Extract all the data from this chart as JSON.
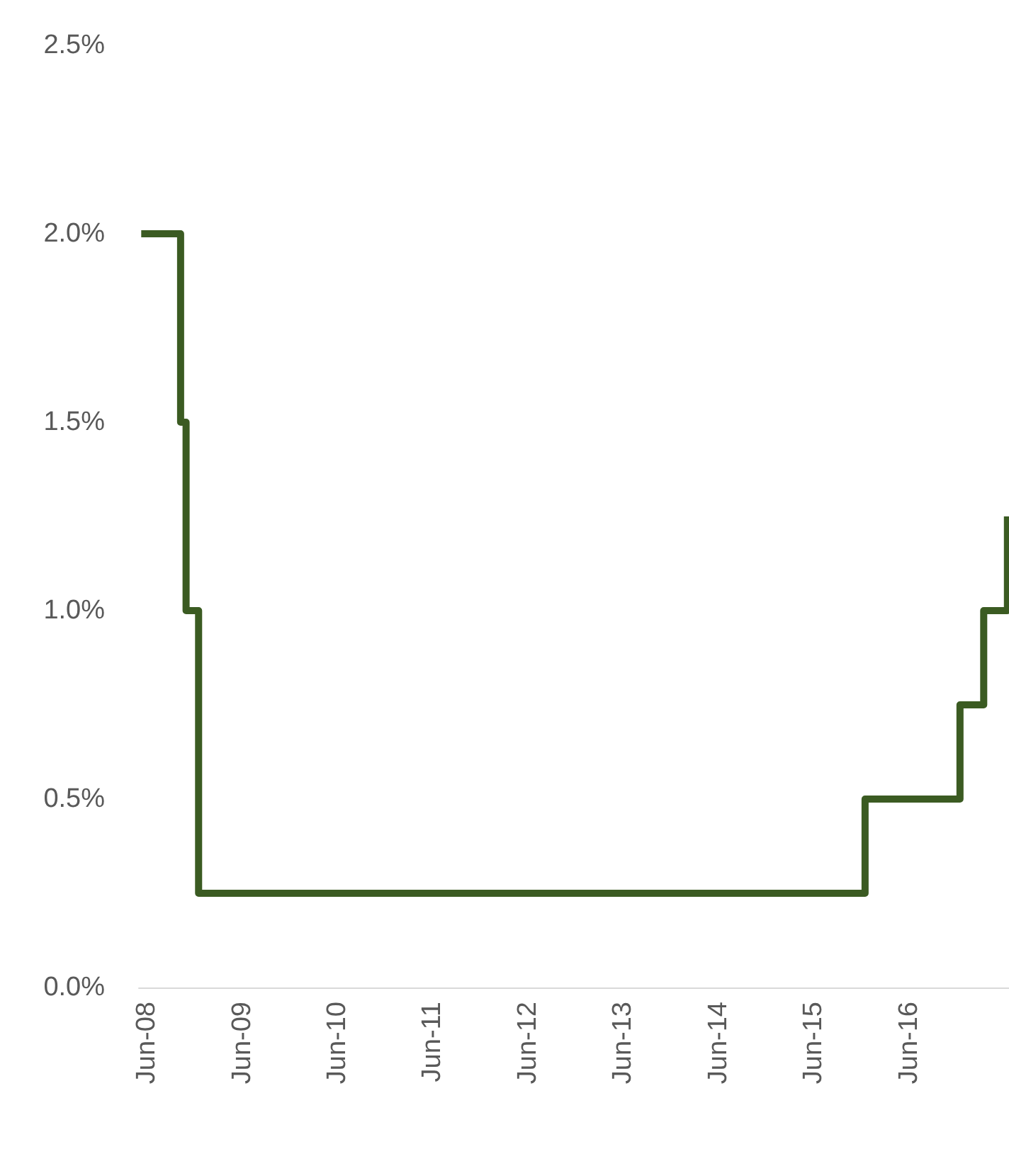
{
  "chart_data": {
    "type": "step",
    "x": [
      "2008-05-10",
      "2008-10-08",
      "2008-10-29",
      "2008-12-16",
      "2015-12-16",
      "2016-12-14",
      "2017-03-15",
      "2017-06-14"
    ],
    "series": [
      {
        "color": "#3b5b22",
        "values": [
          2.0,
          1.5,
          1.0,
          0.25,
          0.5,
          0.75,
          1.0,
          1.25
        ]
      }
    ],
    "xlim": [
      "2008-05-01",
      "2017-06-20"
    ],
    "xticks": [
      {
        "value": "2008-06-01",
        "label": "Jun-08"
      },
      {
        "value": "2009-06-01",
        "label": "Jun-09"
      },
      {
        "value": "2010-06-01",
        "label": "Jun-10"
      },
      {
        "value": "2011-06-01",
        "label": "Jun-11"
      },
      {
        "value": "2012-06-01",
        "label": "Jun-12"
      },
      {
        "value": "2013-06-01",
        "label": "Jun-13"
      },
      {
        "value": "2014-06-01",
        "label": "Jun-14"
      },
      {
        "value": "2015-06-01",
        "label": "Jun-15"
      },
      {
        "value": "2016-06-01",
        "label": "Jun-16"
      }
    ],
    "ylim": [
      0,
      2.5
    ],
    "yticks": [
      {
        "value": 0,
        "label": "0.0%"
      },
      {
        "value": 0.5,
        "label": "0.5%"
      },
      {
        "value": 1,
        "label": "1.0%"
      },
      {
        "value": 1.5,
        "label": "1.5%"
      },
      {
        "value": 2,
        "label": "2.0%"
      },
      {
        "value": 2.5,
        "label": "2.5%"
      }
    ],
    "grid": false,
    "marker": "none",
    "line_style": "solid"
  }
}
